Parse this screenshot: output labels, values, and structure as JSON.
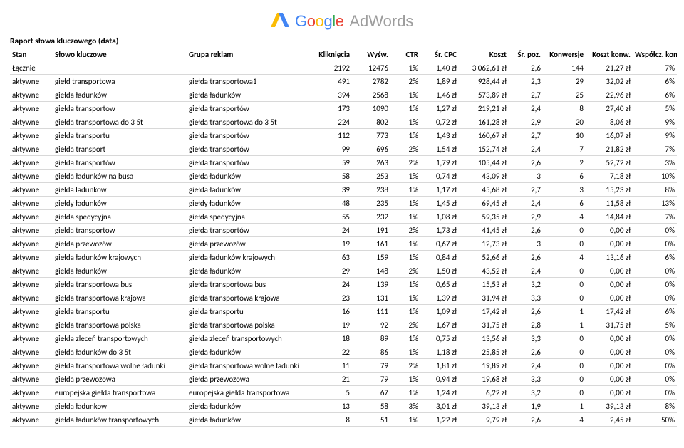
{
  "logo": {
    "google_colors": [
      "#4285F4",
      "#EA4335",
      "#FBBC05",
      "#4285F4",
      "#34A853",
      "#EA4335"
    ],
    "text_google": "Google",
    "text_adwords": "AdWords",
    "adwords_color": "#9d9d9d"
  },
  "report_title": "Raport słowa kluczowego (data)",
  "headers": {
    "stan": "Stan",
    "slowo": "Słowo kluczowe",
    "grupa": "Grupa reklam",
    "klik": "Kliknięcia",
    "wysw": "Wyśw.",
    "ctr": "CTR",
    "cpc": "Śr. CPC",
    "koszt": "Koszt",
    "poz": "Śr. poz.",
    "konw": "Konwersje",
    "kkonw": "Koszt konw.",
    "wsp": "Współcz. konw."
  },
  "rows": [
    {
      "stan": "Łącznie",
      "slowo": "--",
      "grupa": "--",
      "klik": "2192",
      "wysw": "12476",
      "ctr": "1%",
      "cpc": "1,40 zł",
      "koszt": "3 062,61 zł",
      "poz": "2,6",
      "konw": "144",
      "kkonw": "21,27 zł",
      "wsp": "7%"
    },
    {
      "stan": "aktywne",
      "slowo": "giełd transportowa",
      "grupa": "giełda transportowa1",
      "klik": "491",
      "wysw": "2782",
      "ctr": "2%",
      "cpc": "1,89 zł",
      "koszt": "928,44 zł",
      "poz": "2,3",
      "konw": "29",
      "kkonw": "32,02 zł",
      "wsp": "6%"
    },
    {
      "stan": "aktywne",
      "slowo": "giełda ładunków",
      "grupa": "giełda ładunków",
      "klik": "394",
      "wysw": "2568",
      "ctr": "1%",
      "cpc": "1,46 zł",
      "koszt": "573,89 zł",
      "poz": "2,7",
      "konw": "25",
      "kkonw": "22,96 zł",
      "wsp": "6%"
    },
    {
      "stan": "aktywne",
      "slowo": "giełda transportow",
      "grupa": "giełda transportów",
      "klik": "173",
      "wysw": "1090",
      "ctr": "1%",
      "cpc": "1,27 zł",
      "koszt": "219,21 zł",
      "poz": "2,4",
      "konw": "8",
      "kkonw": "27,40 zł",
      "wsp": "5%"
    },
    {
      "stan": "aktywne",
      "slowo": "giełda transportowa do 3 5t",
      "grupa": "giełda transportowa do 3 5t",
      "klik": "224",
      "wysw": "802",
      "ctr": "1%",
      "cpc": "0,72 zł",
      "koszt": "161,28 zł",
      "poz": "2,9",
      "konw": "20",
      "kkonw": "8,06 zł",
      "wsp": "9%"
    },
    {
      "stan": "aktywne",
      "slowo": "giełda transportu",
      "grupa": "giełda transportów",
      "klik": "112",
      "wysw": "773",
      "ctr": "1%",
      "cpc": "1,43 zł",
      "koszt": "160,67 zł",
      "poz": "2,7",
      "konw": "10",
      "kkonw": "16,07 zł",
      "wsp": "9%"
    },
    {
      "stan": "aktywne",
      "slowo": "giełda transport",
      "grupa": "giełda transportów",
      "klik": "99",
      "wysw": "696",
      "ctr": "2%",
      "cpc": "1,54 zł",
      "koszt": "152,74 zł",
      "poz": "2,4",
      "konw": "7",
      "kkonw": "21,82 zł",
      "wsp": "7%"
    },
    {
      "stan": "aktywne",
      "slowo": "giełda transportów",
      "grupa": "giełda transportów",
      "klik": "59",
      "wysw": "263",
      "ctr": "2%",
      "cpc": "1,79 zł",
      "koszt": "105,44 zł",
      "poz": "2,6",
      "konw": "2",
      "kkonw": "52,72 zł",
      "wsp": "3%"
    },
    {
      "stan": "aktywne",
      "slowo": "giełda ładunków na busa",
      "grupa": "giełda ładunków",
      "klik": "58",
      "wysw": "253",
      "ctr": "1%",
      "cpc": "0,74 zł",
      "koszt": "43,09 zł",
      "poz": "3",
      "konw": "6",
      "kkonw": "7,18 zł",
      "wsp": "10%"
    },
    {
      "stan": "aktywne",
      "slowo": "gielda ladunkow",
      "grupa": "giełda ładunków",
      "klik": "39",
      "wysw": "238",
      "ctr": "1%",
      "cpc": "1,17 zł",
      "koszt": "45,68 zł",
      "poz": "2,7",
      "konw": "3",
      "kkonw": "15,23 zł",
      "wsp": "8%"
    },
    {
      "stan": "aktywne",
      "slowo": "giełdy ładunków",
      "grupa": "giełdy ładunków",
      "klik": "48",
      "wysw": "235",
      "ctr": "1%",
      "cpc": "1,45 zł",
      "koszt": "69,45 zł",
      "poz": "2,4",
      "konw": "6",
      "kkonw": "11,58 zł",
      "wsp": "13%"
    },
    {
      "stan": "aktywne",
      "slowo": "giełda spedycyjna",
      "grupa": "giełda spedycyjna",
      "klik": "55",
      "wysw": "232",
      "ctr": "1%",
      "cpc": "1,08 zł",
      "koszt": "59,35 zł",
      "poz": "2,9",
      "konw": "4",
      "kkonw": "14,84 zł",
      "wsp": "7%"
    },
    {
      "stan": "aktywne",
      "slowo": "gielda transportow",
      "grupa": "giełda transportów",
      "klik": "24",
      "wysw": "191",
      "ctr": "2%",
      "cpc": "1,73 zł",
      "koszt": "41,45 zł",
      "poz": "2,6",
      "konw": "0",
      "kkonw": "0,00 zł",
      "wsp": "0%"
    },
    {
      "stan": "aktywne",
      "slowo": "giełda przewozów",
      "grupa": "giełda przewozów",
      "klik": "19",
      "wysw": "161",
      "ctr": "1%",
      "cpc": "0,67 zł",
      "koszt": "12,73 zł",
      "poz": "3",
      "konw": "0",
      "kkonw": "0,00 zł",
      "wsp": "0%"
    },
    {
      "stan": "aktywne",
      "slowo": "giełda ładunków krajowych",
      "grupa": "giełda ładunków krajowych",
      "klik": "63",
      "wysw": "159",
      "ctr": "1%",
      "cpc": "0,84 zł",
      "koszt": "52,66 zł",
      "poz": "2,6",
      "konw": "4",
      "kkonw": "13,16 zł",
      "wsp": "6%"
    },
    {
      "stan": "aktywne",
      "slowo": "gielda ładunków",
      "grupa": "giełda ładunków",
      "klik": "29",
      "wysw": "148",
      "ctr": "2%",
      "cpc": "1,50 zł",
      "koszt": "43,52 zł",
      "poz": "2,4",
      "konw": "0",
      "kkonw": "0,00 zł",
      "wsp": "0%"
    },
    {
      "stan": "aktywne",
      "slowo": "giełda transportowa bus",
      "grupa": "giełda transportowa bus",
      "klik": "24",
      "wysw": "139",
      "ctr": "1%",
      "cpc": "0,65 zł",
      "koszt": "15,53 zł",
      "poz": "3,2",
      "konw": "0",
      "kkonw": "0,00 zł",
      "wsp": "0%"
    },
    {
      "stan": "aktywne",
      "slowo": "giełda transportowa krajowa",
      "grupa": "giełda transportowa krajowa",
      "klik": "23",
      "wysw": "131",
      "ctr": "1%",
      "cpc": "1,39 zł",
      "koszt": "31,94 zł",
      "poz": "3,3",
      "konw": "0",
      "kkonw": "0,00 zł",
      "wsp": "0%"
    },
    {
      "stan": "aktywne",
      "slowo": "gielda transportu",
      "grupa": "gielda transportu",
      "klik": "16",
      "wysw": "111",
      "ctr": "1%",
      "cpc": "1,09 zł",
      "koszt": "17,42 zł",
      "poz": "2,6",
      "konw": "1",
      "kkonw": "17,42 zł",
      "wsp": "6%"
    },
    {
      "stan": "aktywne",
      "slowo": "giełda transportowa polska",
      "grupa": "giełda transportowa polska",
      "klik": "19",
      "wysw": "92",
      "ctr": "2%",
      "cpc": "1,67 zł",
      "koszt": "31,75 zł",
      "poz": "2,8",
      "konw": "1",
      "kkonw": "31,75 zł",
      "wsp": "5%"
    },
    {
      "stan": "aktywne",
      "slowo": "giełda zleceń transportowych",
      "grupa": "giełda zleceń transportowych",
      "klik": "18",
      "wysw": "89",
      "ctr": "1%",
      "cpc": "0,75 zł",
      "koszt": "13,56 zł",
      "poz": "3,3",
      "konw": "0",
      "kkonw": "0,00 zł",
      "wsp": "0%"
    },
    {
      "stan": "aktywne",
      "slowo": "giełda ładunków do 3 5t",
      "grupa": "giełda ładunków",
      "klik": "22",
      "wysw": "86",
      "ctr": "1%",
      "cpc": "1,18 zł",
      "koszt": "25,85 zł",
      "poz": "2,6",
      "konw": "0",
      "kkonw": "0,00 zł",
      "wsp": "0%"
    },
    {
      "stan": "aktywne",
      "slowo": "giełda transportowa wolne ładunki",
      "grupa": "giełda transportowa wolne ładunki",
      "klik": "11",
      "wysw": "79",
      "ctr": "2%",
      "cpc": "1,81 zł",
      "koszt": "19,89 zł",
      "poz": "2,4",
      "konw": "0",
      "kkonw": "0,00 zł",
      "wsp": "0%"
    },
    {
      "stan": "aktywne",
      "slowo": "giełda przewozowa",
      "grupa": "giełda przewozowa",
      "klik": "21",
      "wysw": "79",
      "ctr": "1%",
      "cpc": "0,94 zł",
      "koszt": "19,68 zł",
      "poz": "3,3",
      "konw": "0",
      "kkonw": "0,00 zł",
      "wsp": "0%"
    },
    {
      "stan": "aktywne",
      "slowo": "europejska giełda transportowa",
      "grupa": "europejska giełda transportowa",
      "klik": "5",
      "wysw": "67",
      "ctr": "1%",
      "cpc": "1,24 zł",
      "koszt": "6,22 zł",
      "poz": "3,2",
      "konw": "0",
      "kkonw": "0,00 zł",
      "wsp": "0%"
    },
    {
      "stan": "aktywne",
      "slowo": "giełda ładunkow",
      "grupa": "giełda ładunków",
      "klik": "13",
      "wysw": "58",
      "ctr": "3%",
      "cpc": "3,01 zł",
      "koszt": "39,13 zł",
      "poz": "1,9",
      "konw": "1",
      "kkonw": "39,13 zł",
      "wsp": "8%"
    },
    {
      "stan": "aktywne",
      "slowo": "giełda ładunków transportowych",
      "grupa": "giełda ładunków",
      "klik": "8",
      "wysw": "51",
      "ctr": "1%",
      "cpc": "1,22 zł",
      "koszt": "9,79 zł",
      "poz": "2,6",
      "konw": "4",
      "kkonw": "2,45 zł",
      "wsp": "50%"
    }
  ]
}
